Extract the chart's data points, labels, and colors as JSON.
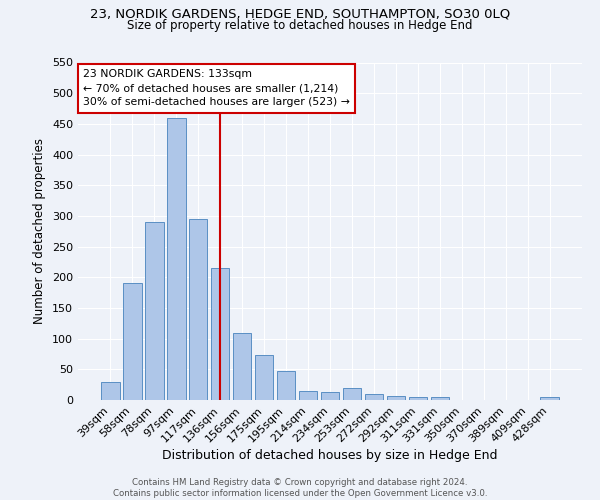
{
  "title": "23, NORDIK GARDENS, HEDGE END, SOUTHAMPTON, SO30 0LQ",
  "subtitle": "Size of property relative to detached houses in Hedge End",
  "xlabel": "Distribution of detached houses by size in Hedge End",
  "ylabel": "Number of detached properties",
  "categories": [
    "39sqm",
    "58sqm",
    "78sqm",
    "97sqm",
    "117sqm",
    "136sqm",
    "156sqm",
    "175sqm",
    "195sqm",
    "214sqm",
    "234sqm",
    "253sqm",
    "272sqm",
    "292sqm",
    "311sqm",
    "331sqm",
    "350sqm",
    "370sqm",
    "389sqm",
    "409sqm",
    "428sqm"
  ],
  "values": [
    30,
    190,
    290,
    460,
    295,
    215,
    110,
    73,
    47,
    15,
    13,
    20,
    10,
    7,
    5,
    5,
    0,
    0,
    0,
    0,
    5
  ],
  "bar_color": "#aec6e8",
  "bar_edge_color": "#5a8fc4",
  "vline_x": 5.0,
  "vline_color": "#cc0000",
  "annotation_text": "23 NORDIK GARDENS: 133sqm\n← 70% of detached houses are smaller (1,214)\n30% of semi-detached houses are larger (523) →",
  "annotation_box_color": "#ffffff",
  "annotation_box_edge": "#cc0000",
  "footer": "Contains HM Land Registry data © Crown copyright and database right 2024.\nContains public sector information licensed under the Open Government Licence v3.0.",
  "bg_color": "#eef2f9",
  "ylim": [
    0,
    550
  ],
  "yticks": [
    0,
    50,
    100,
    150,
    200,
    250,
    300,
    350,
    400,
    450,
    500,
    550
  ]
}
